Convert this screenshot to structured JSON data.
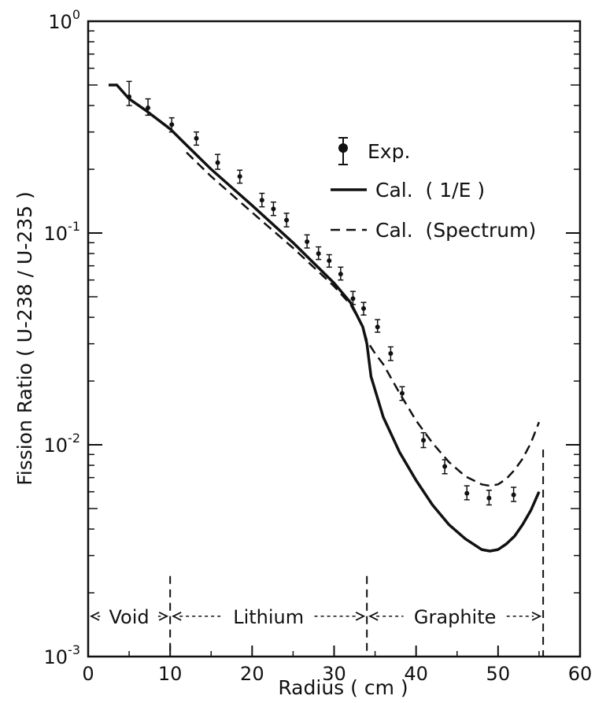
{
  "chart_data": {
    "type": "line",
    "xlabel": "Radius  ( cm )",
    "ylabel": "Fission   Ratio    ( U-238 / U-235 )",
    "xlim": [
      0,
      60
    ],
    "ylim": [
      0.001,
      1
    ],
    "yscale": "log",
    "x_ticks": [
      0,
      10,
      20,
      30,
      40,
      50,
      60
    ],
    "x_tick_labels": [
      "0",
      "10",
      "20",
      "30",
      "40",
      "50",
      "60"
    ],
    "y_ticks": [
      {
        "value": 1,
        "base": "10",
        "exp": "0"
      },
      {
        "value": 0.1,
        "base": "10",
        "exp": "-1"
      },
      {
        "value": 0.01,
        "base": "10",
        "exp": "-2"
      },
      {
        "value": 0.001,
        "base": "10",
        "exp": "-3"
      }
    ],
    "legend_position": "top-right",
    "series": [
      {
        "name": "Exp.",
        "style": "points-with-errorbars",
        "points": [
          {
            "x": 5.0,
            "y": 0.44,
            "lo": 0.4,
            "hi": 0.52
          },
          {
            "x": 7.3,
            "y": 0.39,
            "lo": 0.36,
            "hi": 0.43
          },
          {
            "x": 10.2,
            "y": 0.325,
            "lo": 0.3,
            "hi": 0.35
          },
          {
            "x": 13.2,
            "y": 0.28,
            "lo": 0.26,
            "hi": 0.3
          },
          {
            "x": 15.8,
            "y": 0.215,
            "lo": 0.2,
            "hi": 0.235
          },
          {
            "x": 18.5,
            "y": 0.185,
            "lo": 0.172,
            "hi": 0.198
          },
          {
            "x": 21.2,
            "y": 0.143,
            "lo": 0.133,
            "hi": 0.154
          },
          {
            "x": 22.6,
            "y": 0.13,
            "lo": 0.121,
            "hi": 0.14
          },
          {
            "x": 24.2,
            "y": 0.115,
            "lo": 0.107,
            "hi": 0.124
          },
          {
            "x": 26.7,
            "y": 0.091,
            "lo": 0.085,
            "hi": 0.098
          },
          {
            "x": 28.1,
            "y": 0.08,
            "lo": 0.075,
            "hi": 0.086
          },
          {
            "x": 29.4,
            "y": 0.074,
            "lo": 0.069,
            "hi": 0.079
          },
          {
            "x": 30.8,
            "y": 0.064,
            "lo": 0.06,
            "hi": 0.069
          },
          {
            "x": 32.3,
            "y": 0.049,
            "lo": 0.046,
            "hi": 0.053
          },
          {
            "x": 33.6,
            "y": 0.044,
            "lo": 0.041,
            "hi": 0.047
          },
          {
            "x": 35.3,
            "y": 0.036,
            "lo": 0.034,
            "hi": 0.039
          },
          {
            "x": 36.9,
            "y": 0.027,
            "lo": 0.025,
            "hi": 0.029
          },
          {
            "x": 38.3,
            "y": 0.0175,
            "lo": 0.0162,
            "hi": 0.0188
          },
          {
            "x": 40.9,
            "y": 0.0105,
            "lo": 0.0097,
            "hi": 0.0114
          },
          {
            "x": 43.5,
            "y": 0.0079,
            "lo": 0.0073,
            "hi": 0.0085
          },
          {
            "x": 46.2,
            "y": 0.0059,
            "lo": 0.0055,
            "hi": 0.0064
          },
          {
            "x": 48.9,
            "y": 0.0056,
            "lo": 0.0052,
            "hi": 0.0061
          },
          {
            "x": 51.9,
            "y": 0.0058,
            "lo": 0.0054,
            "hi": 0.0063
          }
        ]
      },
      {
        "name": "Cal.  ( 1/E )",
        "style": "solid",
        "x": [
          2.5,
          3.5,
          5,
          7,
          10,
          12,
          15,
          20,
          25,
          30,
          32,
          33.5,
          34,
          34.5,
          36,
          38,
          40,
          42,
          44,
          46,
          48,
          49,
          50,
          51,
          52,
          53,
          54,
          55
        ],
        "y": [
          0.5,
          0.5,
          0.43,
          0.38,
          0.31,
          0.26,
          0.2,
          0.135,
          0.09,
          0.058,
          0.047,
          0.036,
          0.03,
          0.021,
          0.0135,
          0.0092,
          0.0068,
          0.0052,
          0.0042,
          0.0036,
          0.0032,
          0.00315,
          0.0032,
          0.0034,
          0.0037,
          0.0042,
          0.0049,
          0.006
        ]
      },
      {
        "name": "Cal.  (Spectrum)",
        "style": "dashed",
        "x": [
          12,
          15,
          20,
          25,
          30,
          32,
          33.5,
          34,
          35,
          36,
          38,
          40,
          42,
          44,
          46,
          48,
          49,
          50,
          51,
          52,
          53,
          54,
          55
        ],
        "y": [
          0.24,
          0.185,
          0.125,
          0.085,
          0.056,
          0.046,
          0.036,
          0.031,
          0.027,
          0.024,
          0.0175,
          0.013,
          0.0102,
          0.0083,
          0.0071,
          0.0065,
          0.0064,
          0.0065,
          0.0069,
          0.0076,
          0.0086,
          0.0102,
          0.0128
        ]
      }
    ],
    "boundaries": [
      10,
      34,
      55.5
    ],
    "regions": [
      {
        "label": "Void",
        "from": 0,
        "to": 10
      },
      {
        "label": "Lithium",
        "from": 10,
        "to": 34
      },
      {
        "label": "Graphite",
        "from": 34,
        "to": 55.5
      }
    ]
  }
}
